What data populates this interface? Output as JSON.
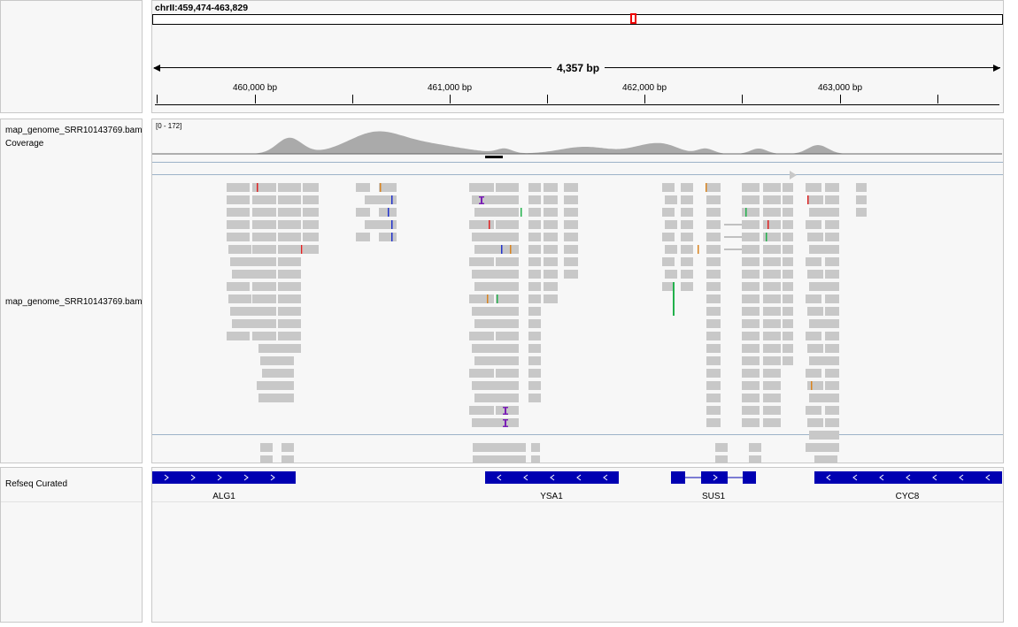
{
  "locus": "chrII:459,474-463,829",
  "span_label": "4,357 bp",
  "ruler": {
    "ticks": [
      "460,000 bp",
      "461,000 bp",
      "462,000 bp",
      "463,000 bp"
    ]
  },
  "tracks": {
    "coverage_name": "map_genome_SRR10143769.bam Coverage",
    "coverage_range": "[0 - 172]",
    "alignment_name": "map_genome_SRR10143769.bam",
    "refseq_name": "Refseq Curated"
  },
  "genes": [
    {
      "name": "ALG1",
      "strand": "+"
    },
    {
      "name": "YSA1",
      "strand": "-"
    },
    {
      "name": "SUS1",
      "strand": "+"
    },
    {
      "name": "CYC8",
      "strand": "-"
    }
  ],
  "colors": {
    "gene": "#0000b2",
    "read": "#c8c8c8",
    "coverage": "#aaaaaa",
    "mismatch_a": "#22b14c",
    "mismatch_c": "#2233cc",
    "mismatch_g": "#d9831f",
    "mismatch_t": "#dd2222",
    "insertion": "#7a1fb5"
  }
}
